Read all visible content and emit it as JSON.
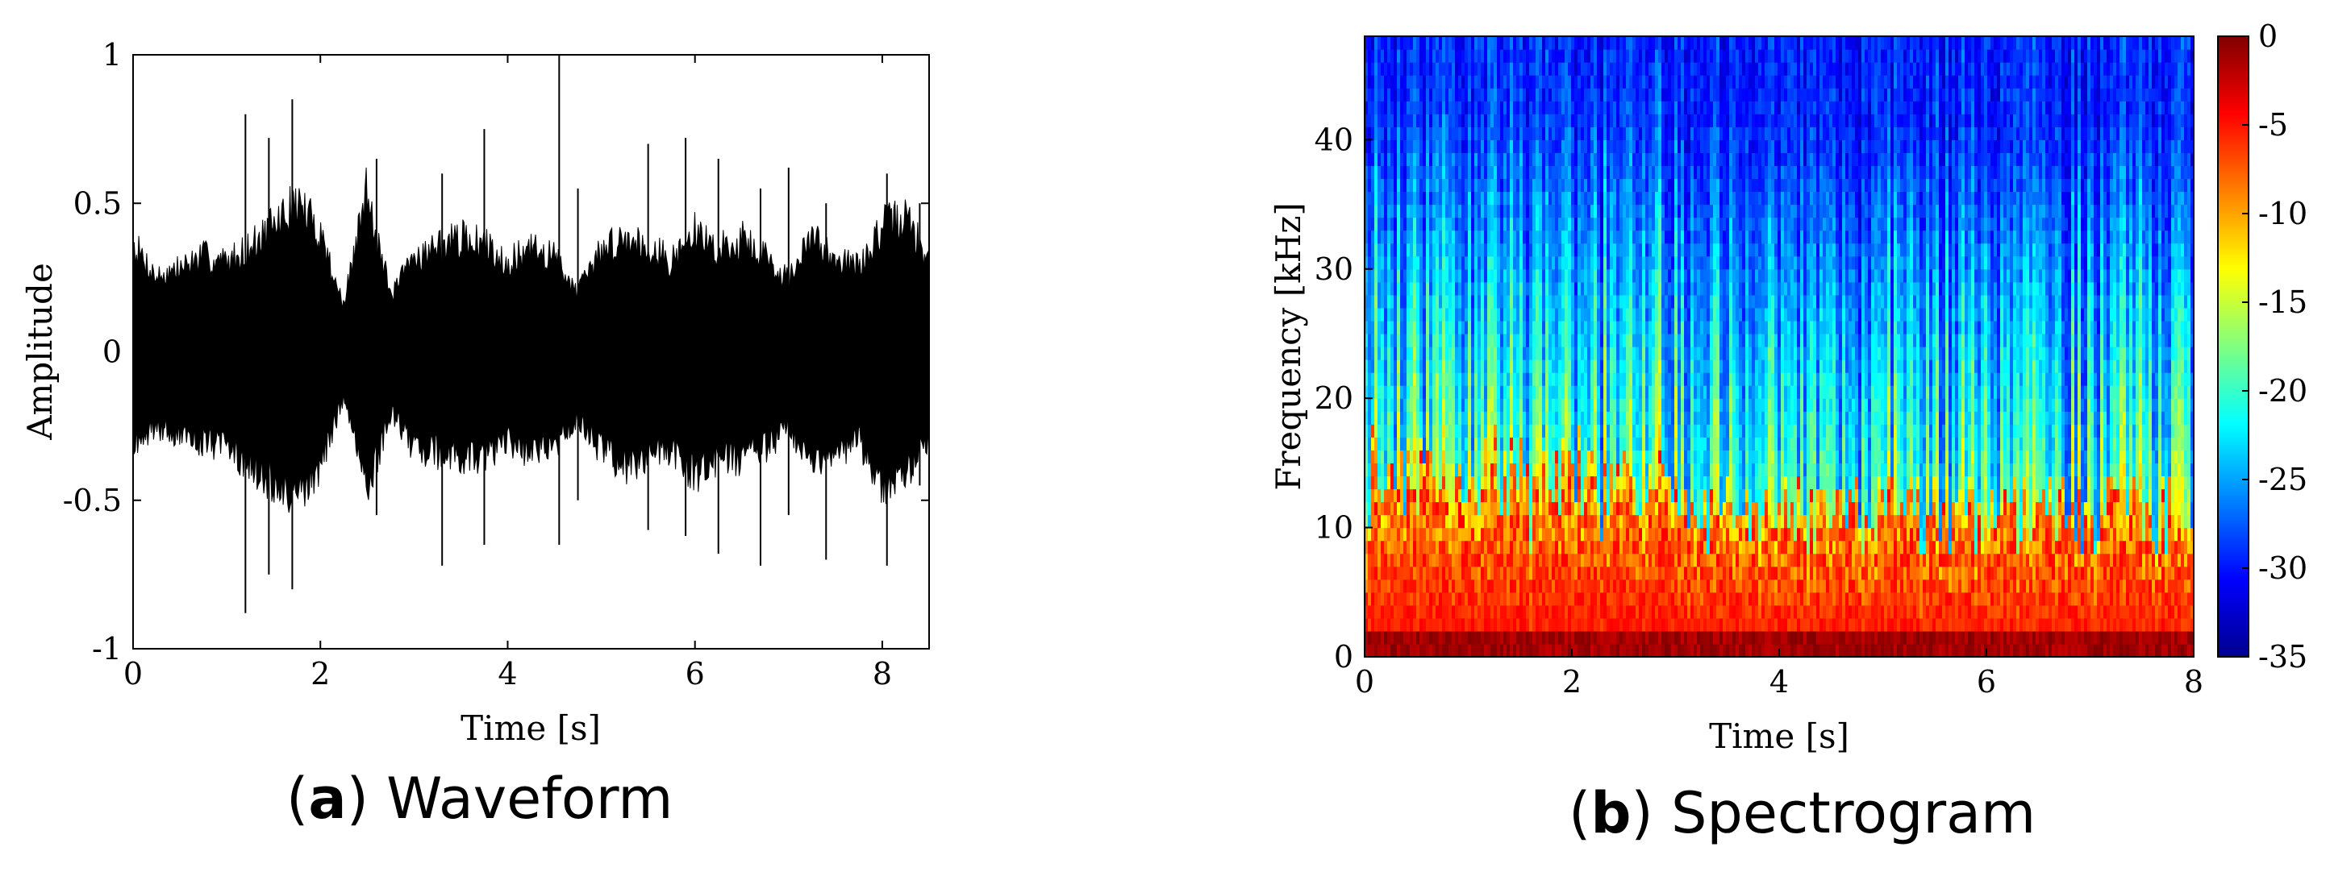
{
  "panels": {
    "a": {
      "letter": "a",
      "name": "Waveform"
    },
    "b": {
      "letter": "b",
      "name": "Spectrogram"
    }
  },
  "chart_data": [
    {
      "type": "line",
      "xlabel": "Time [s]",
      "ylabel": "Amplitude",
      "xlim": [
        0,
        8.5
      ],
      "ylim": [
        -1,
        1
      ],
      "xticks": [
        0,
        2,
        4,
        6,
        8
      ],
      "xtick_labels": [
        "0",
        "2",
        "4",
        "6",
        "8"
      ],
      "yticks": [
        -1,
        -0.5,
        0,
        0.5,
        1
      ],
      "ytick_labels": [
        "-1",
        "-0.5",
        "0",
        "0.5",
        "1"
      ],
      "grid": false,
      "line_color": "#000000",
      "series": [
        {
          "x": [
            0,
            0.25,
            0.5,
            0.75,
            1.0,
            1.25,
            1.5,
            1.75,
            2.0,
            2.25,
            2.5,
            2.75,
            3.0,
            3.25,
            3.5,
            3.75,
            4.0,
            4.25,
            4.5,
            4.75,
            5.0,
            5.25,
            5.5,
            5.75,
            6.0,
            6.25,
            6.5,
            6.75,
            7.0,
            7.25,
            7.5,
            7.75,
            8.0,
            8.25,
            8.5
          ],
          "upper": [
            0.36,
            0.25,
            0.28,
            0.32,
            0.3,
            0.35,
            0.42,
            0.5,
            0.4,
            0.15,
            0.55,
            0.18,
            0.32,
            0.35,
            0.38,
            0.36,
            0.3,
            0.34,
            0.32,
            0.2,
            0.34,
            0.38,
            0.36,
            0.3,
            0.4,
            0.34,
            0.38,
            0.32,
            0.24,
            0.38,
            0.32,
            0.28,
            0.42,
            0.45,
            0.3
          ],
          "lower": [
            -0.3,
            -0.25,
            -0.28,
            -0.3,
            -0.32,
            -0.38,
            -0.45,
            -0.5,
            -0.38,
            -0.15,
            -0.48,
            -0.2,
            -0.32,
            -0.34,
            -0.36,
            -0.35,
            -0.3,
            -0.34,
            -0.32,
            -0.22,
            -0.33,
            -0.38,
            -0.36,
            -0.32,
            -0.42,
            -0.35,
            -0.36,
            -0.32,
            -0.26,
            -0.36,
            -0.34,
            -0.3,
            -0.45,
            -0.42,
            -0.3
          ],
          "spikes": [
            [
              1.2,
              0.8,
              -0.88
            ],
            [
              1.45,
              0.72,
              -0.75
            ],
            [
              1.7,
              0.85,
              -0.8
            ],
            [
              2.6,
              0.65,
              -0.55
            ],
            [
              3.3,
              0.6,
              -0.72
            ],
            [
              3.75,
              0.75,
              -0.65
            ],
            [
              4.55,
              1.0,
              -0.65
            ],
            [
              4.75,
              0.55,
              -0.5
            ],
            [
              5.5,
              0.7,
              -0.6
            ],
            [
              5.9,
              0.72,
              -0.62
            ],
            [
              6.25,
              0.65,
              -0.68
            ],
            [
              6.7,
              0.55,
              -0.72
            ],
            [
              7.0,
              0.62,
              -0.55
            ],
            [
              7.4,
              0.5,
              -0.7
            ],
            [
              8.05,
              0.6,
              -0.72
            ],
            [
              8.4,
              0.5,
              -0.45
            ]
          ]
        }
      ]
    },
    {
      "type": "heatmap",
      "xlabel": "Time [s]",
      "ylabel": "Frequency [kHz]",
      "xlim": [
        0,
        8
      ],
      "ylim": [
        0,
        48
      ],
      "xticks": [
        0,
        2,
        4,
        6,
        8
      ],
      "xtick_labels": [
        "0",
        "2",
        "4",
        "6",
        "8"
      ],
      "yticks": [
        0,
        10,
        20,
        30,
        40
      ],
      "ytick_labels": [
        "0",
        "10",
        "20",
        "30",
        "40"
      ],
      "colormap": "jet",
      "colorbar": {
        "range": [
          -35,
          0
        ],
        "ticks": [
          0,
          -5,
          -10,
          -15,
          -20,
          -25,
          -30,
          -35
        ],
        "tick_labels": [
          "0",
          "-5",
          "-10",
          "-15",
          "-20",
          "-25",
          "-30",
          "-35"
        ]
      }
    }
  ]
}
